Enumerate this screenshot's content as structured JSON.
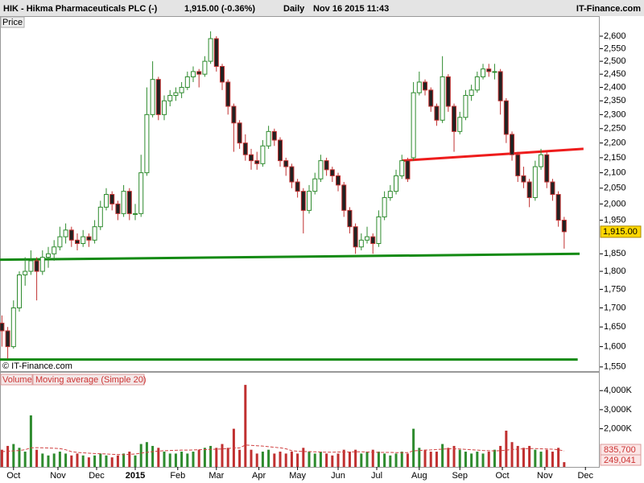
{
  "header": {
    "symbol": "HIK - Hikma Pharmaceuticals PLC (-)",
    "quote": "1,915.00 (-0.36%)",
    "period": "Daily",
    "timestamp": "Nov 16 2015 11:43",
    "site": "IT-Finance.com"
  },
  "chart_data": {
    "type": "candlestick",
    "log_scale": true,
    "panel_label": "Price",
    "copyright": "© IT-Finance.com",
    "up_color": "#2e8b2e",
    "down_color": "#c03030",
    "last_price": {
      "value": 1915,
      "label": "1,915.00"
    },
    "xlim": [
      0,
      310.4
    ],
    "xticks": [
      {
        "value": 7,
        "label": "Oct"
      },
      {
        "value": 30,
        "label": "Nov"
      },
      {
        "value": 50,
        "label": "Dec"
      },
      {
        "value": 70,
        "label": "2015"
      },
      {
        "value": 92,
        "label": "Feb"
      },
      {
        "value": 112,
        "label": "Mar"
      },
      {
        "value": 134,
        "label": "Apr"
      },
      {
        "value": 154,
        "label": "May"
      },
      {
        "value": 175,
        "label": "Jun"
      },
      {
        "value": 195,
        "label": "Jul"
      },
      {
        "value": 217,
        "label": "Aug"
      },
      {
        "value": 238,
        "label": "Sep"
      },
      {
        "value": 260,
        "label": "Oct"
      },
      {
        "value": 282,
        "label": "Nov"
      },
      {
        "value": 303,
        "label": "Dec"
      }
    ],
    "ylim": [
      1538,
      2683
    ],
    "yticks": [
      {
        "value": 1550,
        "label": "1,550"
      },
      {
        "value": 1600,
        "label": "1,600"
      },
      {
        "value": 1650,
        "label": "1,650"
      },
      {
        "value": 1700,
        "label": "1,700"
      },
      {
        "value": 1750,
        "label": "1,750"
      },
      {
        "value": 1800,
        "label": "1,800"
      },
      {
        "value": 1850,
        "label": "1,850"
      },
      {
        "value": 1950,
        "label": "1,950"
      },
      {
        "value": 2000,
        "label": "2,000"
      },
      {
        "value": 2050,
        "label": "2,050"
      },
      {
        "value": 2100,
        "label": "2,100"
      },
      {
        "value": 2150,
        "label": "2,150"
      },
      {
        "value": 2200,
        "label": "2,200"
      },
      {
        "value": 2250,
        "label": "2,250"
      },
      {
        "value": 2300,
        "label": "2,300"
      },
      {
        "value": 2350,
        "label": "2,350"
      },
      {
        "value": 2400,
        "label": "2,400"
      },
      {
        "value": 2450,
        "label": "2,450"
      },
      {
        "value": 2500,
        "label": "2,500"
      },
      {
        "value": 2550,
        "label": "2,550"
      },
      {
        "value": 2600,
        "label": "2,600"
      }
    ],
    "trend_lines": [
      {
        "color": "#138a13",
        "x": [
          0,
          300
        ],
        "y": [
          1833,
          1850
        ]
      },
      {
        "color": "#ee1c1c",
        "x": [
          208,
          302
        ],
        "y": [
          2140,
          2180
        ]
      },
      {
        "color": "#138a13",
        "x": [
          0,
          299
        ],
        "y": [
          1568,
          1568
        ]
      }
    ],
    "candles": [
      [
        1,
        1660,
        1680,
        1600,
        1640,
        900
      ],
      [
        4,
        1640,
        1650,
        1570,
        1600,
        1100
      ],
      [
        7,
        1600,
        1720,
        1595,
        1700,
        1200
      ],
      [
        10,
        1700,
        1800,
        1690,
        1790,
        1000
      ],
      [
        13,
        1790,
        1840,
        1760,
        1800,
        800
      ],
      [
        16,
        1800,
        1860,
        1790,
        1830,
        2700
      ],
      [
        19,
        1830,
        1840,
        1720,
        1800,
        900
      ],
      [
        22,
        1800,
        1860,
        1790,
        1840,
        700
      ],
      [
        25,
        1840,
        1870,
        1810,
        1850,
        600
      ],
      [
        28,
        1850,
        1890,
        1830,
        1870,
        700
      ],
      [
        31,
        1870,
        1930,
        1860,
        1900,
        800
      ],
      [
        34,
        1900,
        1940,
        1880,
        1920,
        700
      ],
      [
        37,
        1920,
        1930,
        1870,
        1890,
        600
      ],
      [
        40,
        1890,
        1910,
        1860,
        1880,
        700
      ],
      [
        43,
        1880,
        1920,
        1870,
        1900,
        600
      ],
      [
        46,
        1900,
        1910,
        1870,
        1890,
        500
      ],
      [
        49,
        1890,
        1950,
        1880,
        1930,
        600
      ],
      [
        52,
        1930,
        2010,
        1920,
        1990,
        700
      ],
      [
        55,
        1990,
        2050,
        1980,
        2030,
        600
      ],
      [
        58,
        2030,
        2040,
        1980,
        2000,
        500
      ],
      [
        61,
        2000,
        2010,
        1950,
        1970,
        600
      ],
      [
        64,
        1970,
        2060,
        1960,
        2040,
        700
      ],
      [
        67,
        2040,
        2050,
        1950,
        1970,
        800
      ],
      [
        70,
        1970,
        2000,
        1950,
        1970,
        600
      ],
      [
        73,
        1970,
        2160,
        1960,
        2100,
        1200
      ],
      [
        76,
        2100,
        2400,
        2090,
        2300,
        1300
      ],
      [
        79,
        2300,
        2500,
        2290,
        2430,
        1100
      ],
      [
        82,
        2430,
        2440,
        2280,
        2300,
        1000
      ],
      [
        85,
        2300,
        2370,
        2280,
        2350,
        800
      ],
      [
        88,
        2350,
        2390,
        2330,
        2370,
        700
      ],
      [
        91,
        2370,
        2400,
        2350,
        2380,
        700
      ],
      [
        94,
        2380,
        2420,
        2360,
        2400,
        800
      ],
      [
        97,
        2400,
        2460,
        2390,
        2440,
        700
      ],
      [
        100,
        2440,
        2480,
        2420,
        2460,
        800
      ],
      [
        103,
        2460,
        2470,
        2400,
        2450,
        900
      ],
      [
        106,
        2450,
        2520,
        2440,
        2500,
        1000
      ],
      [
        109,
        2500,
        2620,
        2490,
        2590,
        1100
      ],
      [
        112,
        2590,
        2600,
        2460,
        2480,
        1000
      ],
      [
        115,
        2480,
        2490,
        2390,
        2420,
        1200
      ],
      [
        118,
        2420,
        2430,
        2300,
        2330,
        1000
      ],
      [
        121,
        2330,
        2340,
        2170,
        2270,
        2000
      ],
      [
        124,
        2270,
        2280,
        2180,
        2200,
        900
      ],
      [
        127,
        2200,
        2230,
        2140,
        2160,
        4300
      ],
      [
        130,
        2160,
        2180,
        2110,
        2140,
        900
      ],
      [
        133,
        2140,
        2170,
        2110,
        2130,
        700
      ],
      [
        136,
        2130,
        2210,
        2120,
        2190,
        800
      ],
      [
        139,
        2190,
        2260,
        2180,
        2240,
        900
      ],
      [
        142,
        2240,
        2250,
        2190,
        2210,
        700
      ],
      [
        145,
        2210,
        2220,
        2120,
        2140,
        800
      ],
      [
        148,
        2140,
        2150,
        2090,
        2120,
        700
      ],
      [
        151,
        2120,
        2130,
        2050,
        2070,
        800
      ],
      [
        154,
        2070,
        2080,
        2020,
        2040,
        700
      ],
      [
        157,
        2040,
        2050,
        1910,
        1980,
        1000
      ],
      [
        160,
        1980,
        2060,
        1970,
        2040,
        800
      ],
      [
        163,
        2040,
        2100,
        2030,
        2080,
        700
      ],
      [
        166,
        2080,
        2160,
        2070,
        2140,
        800
      ],
      [
        169,
        2140,
        2150,
        2090,
        2110,
        700
      ],
      [
        172,
        2110,
        2120,
        2070,
        2090,
        600
      ],
      [
        175,
        2090,
        2100,
        2040,
        2060,
        700
      ],
      [
        178,
        2060,
        2070,
        1960,
        1980,
        900
      ],
      [
        181,
        1980,
        1990,
        1910,
        1930,
        800
      ],
      [
        184,
        1930,
        1940,
        1850,
        1870,
        900
      ],
      [
        187,
        1870,
        1910,
        1860,
        1890,
        700
      ],
      [
        190,
        1890,
        1930,
        1880,
        1900,
        800
      ],
      [
        193,
        1900,
        1910,
        1850,
        1880,
        900
      ],
      [
        196,
        1880,
        1980,
        1870,
        1960,
        800
      ],
      [
        199,
        1960,
        2040,
        1950,
        2020,
        700
      ],
      [
        202,
        2020,
        2060,
        2010,
        2040,
        600
      ],
      [
        205,
        2040,
        2110,
        2030,
        2090,
        700
      ],
      [
        208,
        2090,
        2160,
        2080,
        2140,
        800
      ],
      [
        211,
        2140,
        2150,
        2070,
        2080,
        700
      ],
      [
        214,
        2150,
        2420,
        2140,
        2380,
        2000
      ],
      [
        217,
        2380,
        2460,
        2370,
        2420,
        1000
      ],
      [
        220,
        2420,
        2430,
        2370,
        2390,
        900
      ],
      [
        223,
        2390,
        2400,
        2310,
        2330,
        800
      ],
      [
        226,
        2330,
        2340,
        2260,
        2280,
        800
      ],
      [
        229,
        2280,
        2520,
        2270,
        2440,
        1200
      ],
      [
        232,
        2440,
        2450,
        2310,
        2330,
        1000
      ],
      [
        235,
        2330,
        2340,
        2170,
        2240,
        1100
      ],
      [
        238,
        2240,
        2310,
        2230,
        2290,
        900
      ],
      [
        241,
        2290,
        2390,
        2280,
        2370,
        800
      ],
      [
        244,
        2370,
        2410,
        2350,
        2390,
        700
      ],
      [
        247,
        2390,
        2460,
        2380,
        2440,
        800
      ],
      [
        250,
        2440,
        2490,
        2430,
        2470,
        700
      ],
      [
        253,
        2470,
        2490,
        2440,
        2460,
        800
      ],
      [
        256,
        2460,
        2490,
        2430,
        2460,
        900
      ],
      [
        259,
        2460,
        2470,
        2300,
        2350,
        1100
      ],
      [
        262,
        2350,
        2360,
        2200,
        2230,
        1900
      ],
      [
        265,
        2230,
        2240,
        2140,
        2160,
        1300
      ],
      [
        268,
        2160,
        2170,
        2070,
        2090,
        1100
      ],
      [
        271,
        2090,
        2120,
        2050,
        2070,
        1000
      ],
      [
        274,
        2070,
        2080,
        1990,
        2020,
        1100
      ],
      [
        277,
        2020,
        2140,
        2010,
        2120,
        900
      ],
      [
        280,
        2120,
        2180,
        2110,
        2160,
        800
      ],
      [
        283,
        2160,
        2170,
        2050,
        2070,
        900
      ],
      [
        286,
        2070,
        2080,
        2010,
        2030,
        800
      ],
      [
        289,
        2030,
        2040,
        1930,
        1950,
        1000
      ],
      [
        292,
        1950,
        1960,
        1865,
        1915,
        249.041
      ]
    ],
    "volume": {
      "label": "Volume",
      "ma_label": "Moving average (Simple 20)",
      "ma_color": "#d04040",
      "ylim": [
        0,
        4980
      ],
      "yticks": [
        {
          "value": 2000,
          "label": "2,000K"
        },
        {
          "value": 3000,
          "label": "3,000K"
        },
        {
          "value": 4000,
          "label": "4,000K"
        }
      ],
      "ma_values": [
        800,
        820,
        840,
        860,
        900,
        1000,
        1010,
        1000,
        990,
        980,
        960,
        900,
        800,
        760,
        740,
        720,
        700,
        690,
        680,
        660,
        650,
        640,
        660,
        680,
        720,
        760,
        800,
        830,
        850,
        860,
        870,
        880,
        880,
        890,
        900,
        910,
        920,
        930,
        940,
        960,
        1000,
        990,
        1150,
        1130,
        1110,
        1090,
        1060,
        1030,
        1000,
        950,
        850,
        820,
        810,
        800,
        790,
        780,
        770,
        770,
        780,
        780,
        780,
        790,
        790,
        780,
        770,
        760,
        760,
        760,
        750,
        750,
        750,
        840,
        860,
        880,
        890,
        910,
        930,
        950,
        950,
        940,
        920,
        900,
        880,
        860,
        850,
        840,
        850,
        880,
        910,
        930,
        950,
        960,
        960,
        950,
        940,
        930,
        900,
        835.7
      ],
      "ma_last_label": "835,700",
      "volume_last_label": "249,041"
    }
  }
}
